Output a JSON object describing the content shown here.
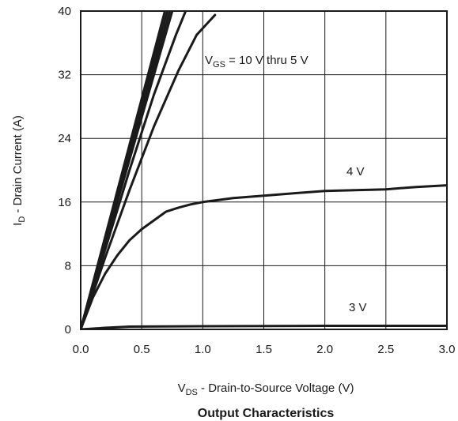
{
  "chart_data": {
    "type": "line",
    "title": "Output Characteristics",
    "xlabel": {
      "main": "V",
      "sub": "DS",
      "rest": " - Drain-to-Source Voltage (V)"
    },
    "ylabel": {
      "main": "I",
      "sub": "D",
      "rest": " - Drain Current (A)"
    },
    "xlim": [
      0,
      3.0
    ],
    "ylim": [
      0,
      40
    ],
    "grid": true,
    "x_ticks": [
      "0.0",
      "0.5",
      "1.0",
      "1.5",
      "2.0",
      "2.5",
      "3.0"
    ],
    "y_ticks": [
      "0",
      "8",
      "16",
      "24",
      "32",
      "40"
    ],
    "annotations": [
      {
        "main": "V",
        "sub": "GS",
        "rest": " = 10 V thru 5 V"
      },
      {
        "main": "4 V",
        "sub": "",
        "rest": ""
      },
      {
        "main": "3 V",
        "sub": "",
        "rest": ""
      }
    ],
    "series": [
      {
        "x": [
          0,
          0.69
        ],
        "y": [
          0,
          40
        ]
      },
      {
        "x": [
          0,
          0.71
        ],
        "y": [
          0,
          40
        ]
      },
      {
        "x": [
          0,
          0.73
        ],
        "y": [
          0,
          40
        ]
      },
      {
        "x": [
          0,
          0.75
        ],
        "y": [
          0,
          40
        ]
      },
      {
        "x": [
          0,
          0.2,
          0.4,
          0.6,
          0.78,
          0.86
        ],
        "y": [
          0,
          10,
          20,
          29.5,
          37,
          40
        ]
      },
      {
        "x": [
          0,
          0.2,
          0.4,
          0.6,
          0.8,
          0.95,
          1.1
        ],
        "y": [
          0,
          9,
          17.5,
          25.5,
          32.5,
          37,
          39.5
        ]
      },
      {
        "x": [
          0,
          0.1,
          0.2,
          0.3,
          0.4,
          0.5,
          0.6,
          0.7,
          0.8,
          0.9,
          1.0,
          1.25,
          1.5,
          2.0,
          2.5,
          2.75,
          3.0
        ],
        "y": [
          0,
          4,
          7,
          9.3,
          11.2,
          12.6,
          13.7,
          14.8,
          15.3,
          15.7,
          16.0,
          16.5,
          16.8,
          17.4,
          17.6,
          17.9,
          18.1
        ]
      },
      {
        "x": [
          0,
          0.2,
          0.4,
          1.0,
          2.0,
          3.0
        ],
        "y": [
          0,
          0.2,
          0.35,
          0.4,
          0.45,
          0.45
        ]
      }
    ]
  }
}
